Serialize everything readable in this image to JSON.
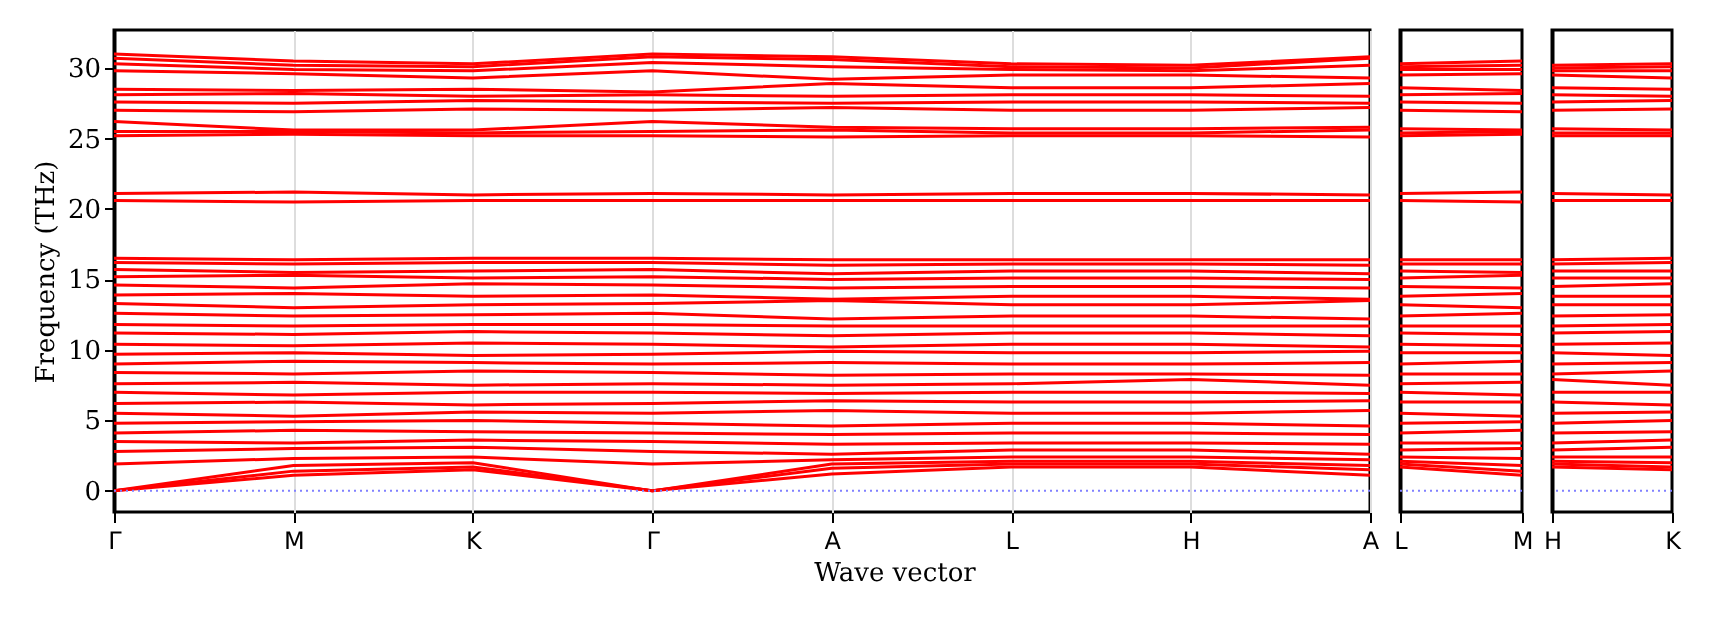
{
  "chart_data": [
    {
      "type": "line",
      "xlabel": "Wave vector",
      "ylabel": "Frequency (THz)",
      "categories": [
        "Γ",
        "M",
        "K",
        "Γ",
        "A",
        "L",
        "H",
        "A"
      ],
      "ylim": [
        -1.5,
        32.7
      ],
      "yticks": [
        0,
        5,
        10,
        15,
        20,
        25,
        30
      ],
      "grid": "x",
      "ref_lines": [
        {
          "axis": "y",
          "value": 0,
          "color": "#8080ff",
          "line_style": "dotted"
        }
      ],
      "series": [
        {
          "color": "#ff0000",
          "values": [
            0,
            1.1,
            1.5,
            0,
            1.2,
            1.7,
            1.7,
            1.1
          ]
        },
        {
          "color": "#ff0000",
          "values": [
            0,
            1.4,
            1.7,
            0,
            1.6,
            1.9,
            1.9,
            1.5
          ]
        },
        {
          "color": "#ff0000",
          "values": [
            0,
            1.8,
            2.0,
            0,
            1.9,
            2.1,
            2.1,
            1.8
          ]
        },
        {
          "color": "#ff0000",
          "values": [
            1.9,
            2.3,
            2.4,
            1.9,
            2.2,
            2.4,
            2.4,
            2.2
          ]
        },
        {
          "color": "#ff0000",
          "values": [
            2.8,
            3.0,
            3.1,
            2.8,
            2.6,
            2.9,
            2.9,
            2.6
          ]
        },
        {
          "color": "#ff0000",
          "values": [
            3.5,
            3.4,
            3.6,
            3.5,
            3.3,
            3.4,
            3.4,
            3.3
          ]
        },
        {
          "color": "#ff0000",
          "values": [
            4.1,
            4.3,
            4.2,
            4.1,
            4.0,
            4.1,
            4.1,
            4.0
          ]
        },
        {
          "color": "#ff0000",
          "values": [
            4.8,
            4.9,
            5.0,
            4.8,
            4.6,
            4.8,
            4.8,
            4.6
          ]
        },
        {
          "color": "#ff0000",
          "values": [
            5.5,
            5.3,
            5.6,
            5.5,
            5.7,
            5.5,
            5.5,
            5.7
          ]
        },
        {
          "color": "#ff0000",
          "values": [
            6.2,
            6.3,
            6.1,
            6.2,
            6.4,
            6.3,
            6.3,
            6.4
          ]
        },
        {
          "color": "#ff0000",
          "values": [
            7.0,
            6.8,
            7.0,
            7.0,
            6.9,
            7.0,
            7.0,
            6.9
          ]
        },
        {
          "color": "#ff0000",
          "values": [
            7.6,
            7.7,
            7.5,
            7.6,
            7.5,
            7.6,
            7.9,
            7.5
          ]
        },
        {
          "color": "#ff0000",
          "values": [
            8.4,
            8.3,
            8.5,
            8.4,
            8.2,
            8.3,
            8.3,
            8.2
          ]
        },
        {
          "color": "#ff0000",
          "values": [
            9.0,
            9.2,
            9.1,
            9.0,
            9.1,
            9.0,
            9.0,
            9.1
          ]
        },
        {
          "color": "#ff0000",
          "values": [
            9.7,
            9.8,
            9.6,
            9.7,
            9.9,
            9.8,
            9.8,
            9.9
          ]
        },
        {
          "color": "#ff0000",
          "values": [
            10.4,
            10.3,
            10.5,
            10.4,
            10.2,
            10.4,
            10.4,
            10.2
          ]
        },
        {
          "color": "#ff0000",
          "values": [
            11.2,
            11.1,
            11.3,
            11.2,
            11.0,
            11.2,
            11.2,
            11.0
          ]
        },
        {
          "color": "#ff0000",
          "values": [
            11.8,
            11.7,
            11.8,
            11.8,
            11.7,
            11.7,
            11.7,
            11.7
          ]
        },
        {
          "color": "#ff0000",
          "values": [
            12.6,
            12.4,
            12.5,
            12.6,
            12.2,
            12.4,
            12.4,
            12.2
          ]
        },
        {
          "color": "#ff0000",
          "values": [
            13.3,
            13.0,
            13.2,
            13.3,
            13.5,
            13.2,
            13.2,
            13.5
          ]
        },
        {
          "color": "#ff0000",
          "values": [
            13.9,
            14.0,
            13.8,
            13.9,
            13.6,
            13.8,
            13.8,
            13.6
          ]
        },
        {
          "color": "#ff0000",
          "values": [
            14.6,
            14.4,
            14.7,
            14.6,
            14.4,
            14.5,
            14.5,
            14.4
          ]
        },
        {
          "color": "#ff0000",
          "values": [
            15.2,
            15.3,
            15.1,
            15.2,
            15.0,
            15.1,
            15.1,
            15.0
          ]
        },
        {
          "color": "#ff0000",
          "values": [
            15.7,
            15.5,
            15.6,
            15.7,
            15.4,
            15.6,
            15.6,
            15.4
          ]
        },
        {
          "color": "#ff0000",
          "values": [
            16.2,
            16.1,
            16.2,
            16.2,
            16.0,
            16.1,
            16.1,
            16.0
          ]
        },
        {
          "color": "#ff0000",
          "values": [
            16.5,
            16.4,
            16.5,
            16.5,
            16.4,
            16.4,
            16.4,
            16.4
          ]
        },
        {
          "color": "#ff0000",
          "values": [
            20.6,
            20.5,
            20.6,
            20.6,
            20.6,
            20.6,
            20.6,
            20.6
          ]
        },
        {
          "color": "#ff0000",
          "values": [
            21.1,
            21.2,
            21.0,
            21.1,
            21.0,
            21.1,
            21.1,
            21.0
          ]
        },
        {
          "color": "#ff0000",
          "values": [
            25.2,
            25.3,
            25.2,
            25.2,
            25.1,
            25.2,
            25.2,
            25.1
          ]
        },
        {
          "color": "#ff0000",
          "values": [
            25.5,
            25.5,
            25.4,
            25.5,
            25.6,
            25.4,
            25.4,
            25.6
          ]
        },
        {
          "color": "#ff0000",
          "values": [
            26.2,
            25.6,
            25.6,
            26.2,
            25.8,
            25.7,
            25.7,
            25.8
          ]
        },
        {
          "color": "#ff0000",
          "values": [
            27.0,
            26.9,
            27.1,
            27.0,
            27.2,
            27.0,
            27.0,
            27.2
          ]
        },
        {
          "color": "#ff0000",
          "values": [
            27.6,
            27.5,
            27.7,
            27.6,
            27.5,
            27.6,
            27.6,
            27.5
          ]
        },
        {
          "color": "#ff0000",
          "values": [
            28.1,
            28.2,
            28.0,
            28.1,
            28.0,
            28.1,
            28.1,
            28.0
          ]
        },
        {
          "color": "#ff0000",
          "values": [
            28.5,
            28.4,
            28.5,
            28.3,
            28.9,
            28.6,
            28.6,
            28.9
          ]
        },
        {
          "color": "#ff0000",
          "values": [
            29.8,
            29.6,
            29.3,
            29.8,
            29.2,
            29.5,
            29.5,
            29.3
          ]
        },
        {
          "color": "#ff0000",
          "values": [
            30.3,
            29.9,
            29.8,
            30.4,
            30.1,
            29.9,
            29.8,
            30.2
          ]
        },
        {
          "color": "#ff0000",
          "values": [
            30.7,
            30.2,
            30.1,
            30.8,
            30.6,
            30.1,
            30.0,
            30.7
          ]
        },
        {
          "color": "#ff0000",
          "values": [
            31.0,
            30.5,
            30.3,
            31.0,
            30.8,
            30.3,
            30.2,
            30.8
          ]
        }
      ]
    },
    {
      "type": "line",
      "categories": [
        "L",
        "M"
      ],
      "ylim": [
        -1.5,
        32.7
      ],
      "yticks": [
        0,
        5,
        10,
        15,
        20,
        25,
        30
      ],
      "tick_labels": "x",
      "ref_lines": [
        {
          "axis": "y",
          "value": 0,
          "color": "#8080ff",
          "line_style": "dotted"
        }
      ],
      "series": [
        {
          "color": "#ff0000",
          "values": [
            1.7,
            1.1
          ]
        },
        {
          "color": "#ff0000",
          "values": [
            1.9,
            1.4
          ]
        },
        {
          "color": "#ff0000",
          "values": [
            2.1,
            1.8
          ]
        },
        {
          "color": "#ff0000",
          "values": [
            2.4,
            2.3
          ]
        },
        {
          "color": "#ff0000",
          "values": [
            2.9,
            3.0
          ]
        },
        {
          "color": "#ff0000",
          "values": [
            3.4,
            3.4
          ]
        },
        {
          "color": "#ff0000",
          "values": [
            4.1,
            4.3
          ]
        },
        {
          "color": "#ff0000",
          "values": [
            4.8,
            4.9
          ]
        },
        {
          "color": "#ff0000",
          "values": [
            5.5,
            5.3
          ]
        },
        {
          "color": "#ff0000",
          "values": [
            6.3,
            6.3
          ]
        },
        {
          "color": "#ff0000",
          "values": [
            7.0,
            6.8
          ]
        },
        {
          "color": "#ff0000",
          "values": [
            7.6,
            7.7
          ]
        },
        {
          "color": "#ff0000",
          "values": [
            8.3,
            8.3
          ]
        },
        {
          "color": "#ff0000",
          "values": [
            9.0,
            9.2
          ]
        },
        {
          "color": "#ff0000",
          "values": [
            9.8,
            9.8
          ]
        },
        {
          "color": "#ff0000",
          "values": [
            10.4,
            10.3
          ]
        },
        {
          "color": "#ff0000",
          "values": [
            11.2,
            11.1
          ]
        },
        {
          "color": "#ff0000",
          "values": [
            11.7,
            11.7
          ]
        },
        {
          "color": "#ff0000",
          "values": [
            12.4,
            12.6
          ]
        },
        {
          "color": "#ff0000",
          "values": [
            13.2,
            13.0
          ]
        },
        {
          "color": "#ff0000",
          "values": [
            13.8,
            14.0
          ]
        },
        {
          "color": "#ff0000",
          "values": [
            14.5,
            14.4
          ]
        },
        {
          "color": "#ff0000",
          "values": [
            15.1,
            15.3
          ]
        },
        {
          "color": "#ff0000",
          "values": [
            15.6,
            15.5
          ]
        },
        {
          "color": "#ff0000",
          "values": [
            16.1,
            16.1
          ]
        },
        {
          "color": "#ff0000",
          "values": [
            16.4,
            16.4
          ]
        },
        {
          "color": "#ff0000",
          "values": [
            20.6,
            20.5
          ]
        },
        {
          "color": "#ff0000",
          "values": [
            21.1,
            21.2
          ]
        },
        {
          "color": "#ff0000",
          "values": [
            25.2,
            25.3
          ]
        },
        {
          "color": "#ff0000",
          "values": [
            25.4,
            25.5
          ]
        },
        {
          "color": "#ff0000",
          "values": [
            25.7,
            25.6
          ]
        },
        {
          "color": "#ff0000",
          "values": [
            27.0,
            26.9
          ]
        },
        {
          "color": "#ff0000",
          "values": [
            27.6,
            27.5
          ]
        },
        {
          "color": "#ff0000",
          "values": [
            28.1,
            28.2
          ]
        },
        {
          "color": "#ff0000",
          "values": [
            28.6,
            28.4
          ]
        },
        {
          "color": "#ff0000",
          "values": [
            29.5,
            29.6
          ]
        },
        {
          "color": "#ff0000",
          "values": [
            29.9,
            29.9
          ]
        },
        {
          "color": "#ff0000",
          "values": [
            30.1,
            30.2
          ]
        },
        {
          "color": "#ff0000",
          "values": [
            30.3,
            30.5
          ]
        }
      ]
    },
    {
      "type": "line",
      "categories": [
        "H",
        "K"
      ],
      "ylim": [
        -1.5,
        32.7
      ],
      "yticks": [
        0,
        5,
        10,
        15,
        20,
        25,
        30
      ],
      "tick_labels": "x",
      "ref_lines": [
        {
          "axis": "y",
          "value": 0,
          "color": "#8080ff",
          "line_style": "dotted"
        }
      ],
      "series": [
        {
          "color": "#ff0000",
          "values": [
            1.7,
            1.5
          ]
        },
        {
          "color": "#ff0000",
          "values": [
            1.9,
            1.7
          ]
        },
        {
          "color": "#ff0000",
          "values": [
            2.1,
            2.0
          ]
        },
        {
          "color": "#ff0000",
          "values": [
            2.4,
            2.4
          ]
        },
        {
          "color": "#ff0000",
          "values": [
            2.9,
            3.1
          ]
        },
        {
          "color": "#ff0000",
          "values": [
            3.4,
            3.6
          ]
        },
        {
          "color": "#ff0000",
          "values": [
            4.1,
            4.2
          ]
        },
        {
          "color": "#ff0000",
          "values": [
            4.8,
            5.0
          ]
        },
        {
          "color": "#ff0000",
          "values": [
            5.5,
            5.6
          ]
        },
        {
          "color": "#ff0000",
          "values": [
            6.3,
            6.1
          ]
        },
        {
          "color": "#ff0000",
          "values": [
            7.0,
            7.0
          ]
        },
        {
          "color": "#ff0000",
          "values": [
            7.9,
            7.5
          ]
        },
        {
          "color": "#ff0000",
          "values": [
            8.3,
            8.5
          ]
        },
        {
          "color": "#ff0000",
          "values": [
            9.0,
            9.1
          ]
        },
        {
          "color": "#ff0000",
          "values": [
            9.8,
            9.6
          ]
        },
        {
          "color": "#ff0000",
          "values": [
            10.4,
            10.5
          ]
        },
        {
          "color": "#ff0000",
          "values": [
            11.2,
            11.3
          ]
        },
        {
          "color": "#ff0000",
          "values": [
            11.7,
            11.8
          ]
        },
        {
          "color": "#ff0000",
          "values": [
            12.4,
            12.5
          ]
        },
        {
          "color": "#ff0000",
          "values": [
            13.2,
            13.2
          ]
        },
        {
          "color": "#ff0000",
          "values": [
            13.8,
            13.8
          ]
        },
        {
          "color": "#ff0000",
          "values": [
            14.5,
            14.7
          ]
        },
        {
          "color": "#ff0000",
          "values": [
            15.1,
            15.1
          ]
        },
        {
          "color": "#ff0000",
          "values": [
            15.6,
            15.6
          ]
        },
        {
          "color": "#ff0000",
          "values": [
            16.1,
            16.2
          ]
        },
        {
          "color": "#ff0000",
          "values": [
            16.4,
            16.5
          ]
        },
        {
          "color": "#ff0000",
          "values": [
            20.6,
            20.6
          ]
        },
        {
          "color": "#ff0000",
          "values": [
            21.1,
            21.0
          ]
        },
        {
          "color": "#ff0000",
          "values": [
            25.2,
            25.2
          ]
        },
        {
          "color": "#ff0000",
          "values": [
            25.4,
            25.4
          ]
        },
        {
          "color": "#ff0000",
          "values": [
            25.7,
            25.6
          ]
        },
        {
          "color": "#ff0000",
          "values": [
            27.0,
            27.1
          ]
        },
        {
          "color": "#ff0000",
          "values": [
            27.6,
            27.7
          ]
        },
        {
          "color": "#ff0000",
          "values": [
            28.1,
            28.0
          ]
        },
        {
          "color": "#ff0000",
          "values": [
            28.6,
            28.5
          ]
        },
        {
          "color": "#ff0000",
          "values": [
            29.5,
            29.3
          ]
        },
        {
          "color": "#ff0000",
          "values": [
            29.8,
            29.8
          ]
        },
        {
          "color": "#ff0000",
          "values": [
            30.0,
            30.1
          ]
        },
        {
          "color": "#ff0000",
          "values": [
            30.2,
            30.3
          ]
        }
      ]
    }
  ]
}
